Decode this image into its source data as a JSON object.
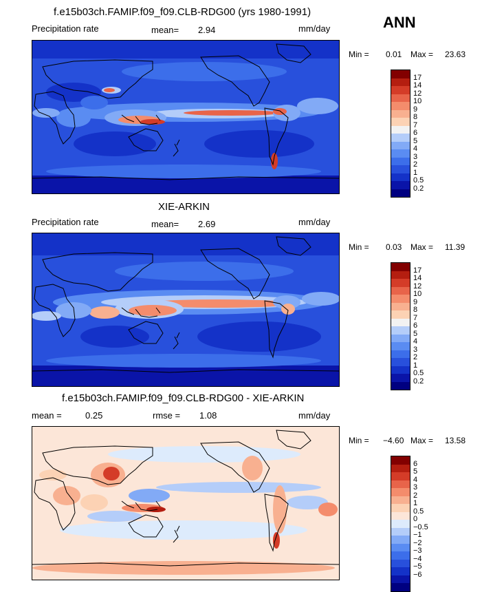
{
  "season": "ANN",
  "colors": {
    "precip_scale": [
      "#000080",
      "#0a14a8",
      "#1432c8",
      "#2850dc",
      "#3c6eea",
      "#5a8cf2",
      "#82aaf6",
      "#b4cdf9",
      "#f2f2f2",
      "#fcd2b4",
      "#f8b090",
      "#f48c6c",
      "#e8644a",
      "#d43c28",
      "#b41e10",
      "#820000"
    ],
    "diff_scale": [
      "#000080",
      "#0a14a8",
      "#1432c8",
      "#2850dc",
      "#3c6eea",
      "#5a8cf2",
      "#82aaf6",
      "#b4cdf9",
      "#ddebfc",
      "#fce6d8",
      "#fcd2b4",
      "#f8b090",
      "#f48c6c",
      "#e8644a",
      "#d43c28",
      "#b41e10",
      "#820000"
    ]
  },
  "panels": [
    {
      "title": "f.e15b03ch.FAMIP.f09_f09.CLB-RDG00 (yrs 1980-1991)",
      "left_label": "Precipitation rate",
      "stat1_label": "mean=",
      "stat1_value": "2.94",
      "stat2_label": "",
      "stat2_value": "",
      "units": "mm/day",
      "min_label": "Min =",
      "min_value": "0.01",
      "max_label": "Max =",
      "max_value": "23.63",
      "levels": [
        "17",
        "14",
        "12",
        "10",
        "9",
        "8",
        "7",
        "6",
        "5",
        "4",
        "3",
        "2",
        "1",
        "0.5",
        "0.2"
      ]
    },
    {
      "title": "XIE-ARKIN",
      "left_label": "Precipitation rate",
      "stat1_label": "mean=",
      "stat1_value": "2.69",
      "stat2_label": "",
      "stat2_value": "",
      "units": "mm/day",
      "min_label": "Min =",
      "min_value": "0.03",
      "max_label": "Max =",
      "max_value": "11.39",
      "levels": [
        "17",
        "14",
        "12",
        "10",
        "9",
        "8",
        "7",
        "6",
        "5",
        "4",
        "3",
        "2",
        "1",
        "0.5",
        "0.2"
      ]
    },
    {
      "title": "f.e15b03ch.FAMIP.f09_f09.CLB-RDG00 - XIE-ARKIN",
      "left_label": "",
      "stat1_label": "mean =",
      "stat1_value": "0.25",
      "stat2_label": "rmse =",
      "stat2_value": "1.08",
      "units": "mm/day",
      "min_label": "Min =",
      "min_value": "−4.60",
      "max_label": "Max =",
      "max_value": "13.58",
      "levels": [
        "6",
        "5",
        "4",
        "3",
        "2",
        "1",
        "0.5",
        "0",
        "−0.5",
        "−1",
        "−2",
        "−3",
        "−4",
        "−5",
        "−6"
      ]
    }
  ]
}
